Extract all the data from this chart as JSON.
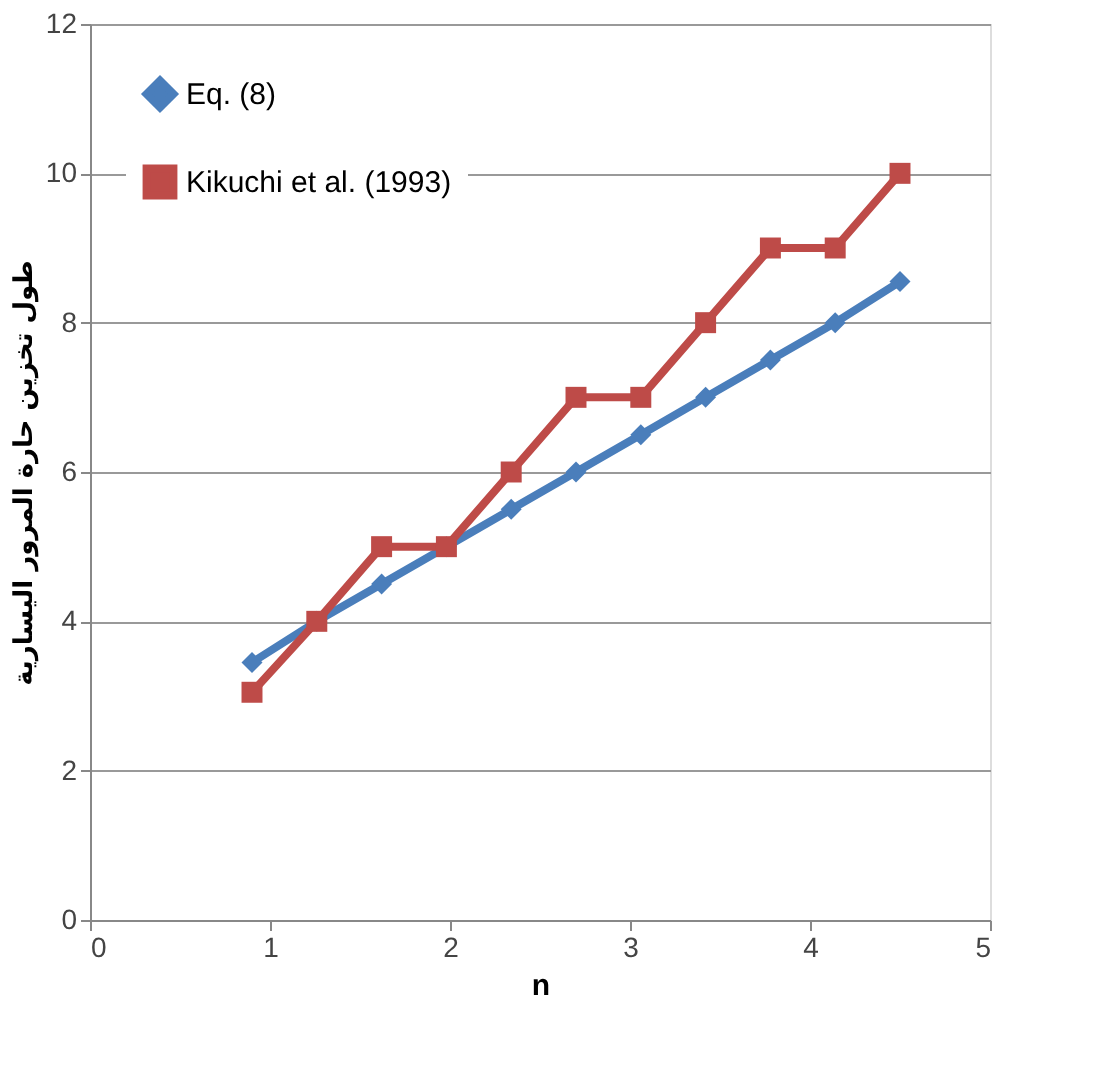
{
  "chart_data": {
    "type": "line",
    "xlabel": "n",
    "ylabel": "طول تخزين حارة المرور اليسارية",
    "x": [
      0.9,
      1.26,
      1.62,
      1.98,
      2.34,
      2.7,
      3.06,
      3.42,
      3.78,
      4.14,
      4.5
    ],
    "series": [
      {
        "name": "Eq. (8)",
        "color": "#4a7ebb",
        "marker": "diamond",
        "values": [
          3.45,
          4,
          4.5,
          5,
          5.5,
          6,
          6.5,
          7,
          7.5,
          8,
          8.55
        ]
      },
      {
        "name": "Kikuchi et al. (1993)",
        "color": "#be4b48",
        "marker": "square",
        "values": [
          3.05,
          4,
          5,
          5,
          6,
          7,
          7,
          8,
          9,
          9,
          10
        ]
      }
    ],
    "xlim": [
      0,
      5
    ],
    "xticks": [
      0,
      1,
      2,
      3,
      4,
      5
    ],
    "ylim": [
      0,
      12
    ],
    "yticks": [
      0,
      2,
      4,
      6,
      8,
      10,
      12
    ],
    "grid": "y",
    "legend": "top left",
    "line_style": "solid"
  }
}
